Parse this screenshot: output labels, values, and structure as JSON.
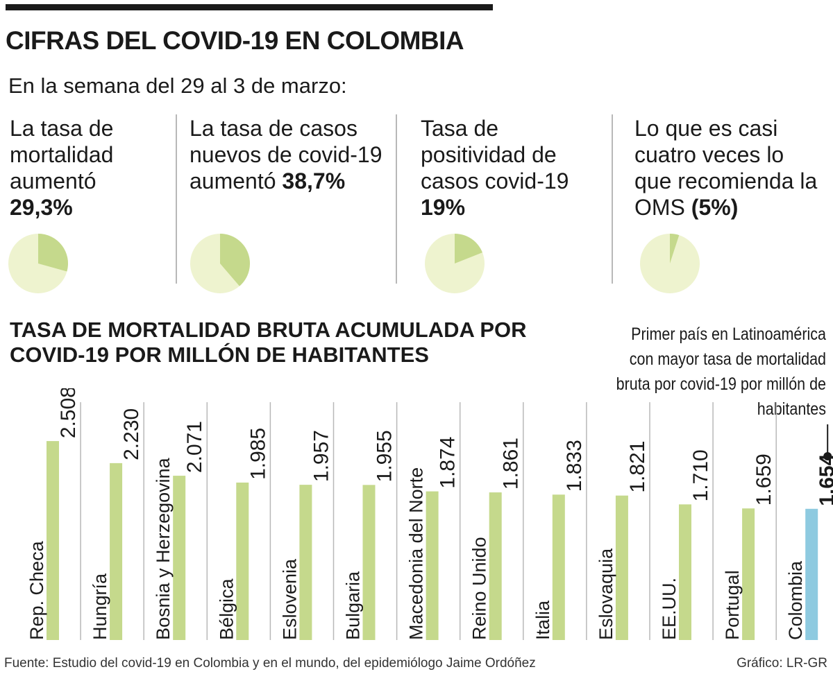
{
  "title": "CIFRAS DEL COVID-19 EN COLOMBIA",
  "week_text": "En la semana del 29 al 3 de marzo:",
  "stats": [
    {
      "text": "La tasa de mortalidad aumentó ",
      "value": "29,3%",
      "fraction": 0.293
    },
    {
      "text": "La tasa de casos nuevos de covid-19 aumentó ",
      "value": "38,7%",
      "fraction": 0.387
    },
    {
      "text": "Tasa de positividad de casos covid-19 ",
      "value": "19%",
      "fraction": 0.19
    },
    {
      "text": "Lo que es casi cuatro veces lo que recomienda la OMS ",
      "value": "(5%)",
      "fraction": 0.05
    }
  ],
  "colors": {
    "pie_fill": "#c5d98c",
    "pie_bg": "#eef3cf",
    "bar": "#c5d98c",
    "highlight": "#8ecae0",
    "text": "#1a1a1a"
  },
  "chart_data": {
    "type": "bar",
    "title": "TASA DE MORTALIDAD BRUTA ACUMULADA POR COVID-19 POR MILLÓN DE HABITANTES",
    "categories": [
      "Rep. Checa",
      "Hungría",
      "Bosnia y Herzegovina",
      "Bélgica",
      "Eslovenia",
      "Bulgaria",
      "Macedonia del Norte",
      "Reino Unido",
      "Italia",
      "Eslovaquia",
      "EE.UU.",
      "Portugal",
      "Colombia"
    ],
    "values": [
      2508,
      2230,
      2071,
      1985,
      1957,
      1955,
      1874,
      1861,
      1833,
      1821,
      1710,
      1659,
      1654
    ],
    "value_labels": [
      "2.508",
      "2.230",
      "2.071",
      "1.985",
      "1.957",
      "1.955",
      "1.874",
      "1.861",
      "1.833",
      "1.821",
      "1.710",
      "1.659",
      "1.654"
    ],
    "highlight": "Colombia",
    "annotation": "Primer país en Latinoamérica con mayor tasa de mortalidad bruta por covid-19 por millón de habitantes"
  },
  "source": "Fuente: Estudio del covid-19 en Colombia y en el mundo, del epidemiólogo Jaime Ordóñez",
  "credit": "Gráfico: LR-GR"
}
